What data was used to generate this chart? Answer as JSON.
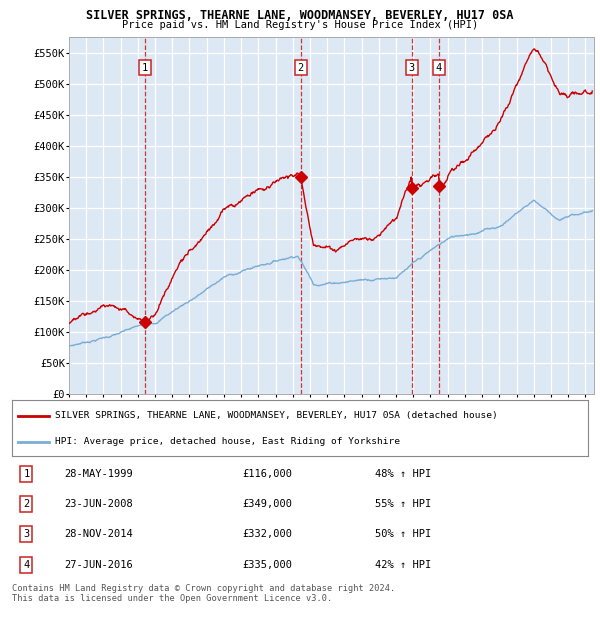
{
  "title1": "SILVER SPRINGS, THEARNE LANE, WOODMANSEY, BEVERLEY, HU17 0SA",
  "title2": "Price paid vs. HM Land Registry's House Price Index (HPI)",
  "bg_color": "#dde8f5",
  "grid_color": "white",
  "sale_dates": [
    1999.41,
    2008.47,
    2014.91,
    2016.49
  ],
  "sale_prices": [
    116000,
    349000,
    332000,
    335000
  ],
  "sale_labels": [
    "1",
    "2",
    "3",
    "4"
  ],
  "sale_info": [
    [
      "1",
      "28-MAY-1999",
      "£116,000",
      "48% ↑ HPI"
    ],
    [
      "2",
      "23-JUN-2008",
      "£349,000",
      "55% ↑ HPI"
    ],
    [
      "3",
      "28-NOV-2014",
      "£332,000",
      "50% ↑ HPI"
    ],
    [
      "4",
      "27-JUN-2016",
      "£335,000",
      "42% ↑ HPI"
    ]
  ],
  "red_line_color": "#cc0000",
  "blue_line_color": "#7aadd4",
  "dashed_vline_color": "#cc2222",
  "ylim": [
    0,
    575000
  ],
  "yticks": [
    0,
    50000,
    100000,
    150000,
    200000,
    250000,
    300000,
    350000,
    400000,
    450000,
    500000,
    550000
  ],
  "xlim_start": 1995.0,
  "xlim_end": 2025.5,
  "xticks": [
    1995,
    1996,
    1997,
    1998,
    1999,
    2000,
    2001,
    2002,
    2003,
    2004,
    2005,
    2006,
    2007,
    2008,
    2009,
    2010,
    2011,
    2012,
    2013,
    2014,
    2015,
    2016,
    2017,
    2018,
    2019,
    2020,
    2021,
    2022,
    2023,
    2024,
    2025
  ],
  "legend_label_red": "SILVER SPRINGS, THEARNE LANE, WOODMANSEY, BEVERLEY, HU17 0SA (detached house)",
  "legend_label_blue": "HPI: Average price, detached house, East Riding of Yorkshire",
  "footer": "Contains HM Land Registry data © Crown copyright and database right 2024.\nThis data is licensed under the Open Government Licence v3.0."
}
